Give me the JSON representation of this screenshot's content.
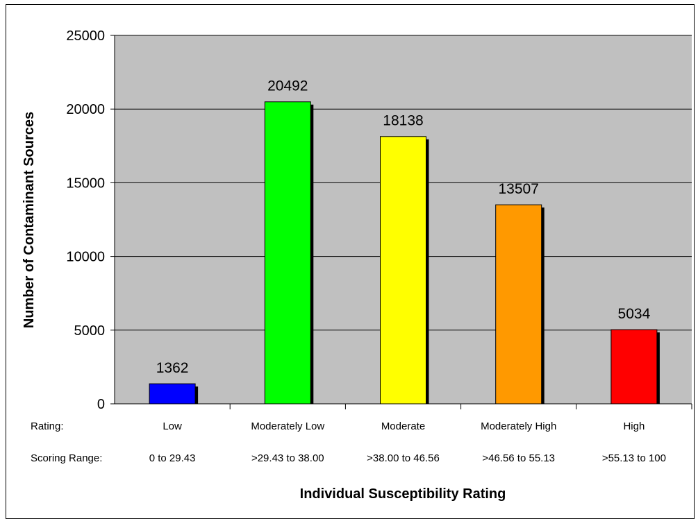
{
  "chart_data": {
    "type": "bar",
    "categories": [
      "Low",
      "Moderately Low",
      "Moderate",
      "Moderately High",
      "High"
    ],
    "scoring_ranges": [
      "0 to 29.43",
      ">29.43 to 38.00",
      ">38.00 to 46.56",
      ">46.56 to 55.13",
      ">55.13 to 100"
    ],
    "values": [
      1362,
      20492,
      18138,
      13507,
      5034
    ],
    "colors": [
      "#0000ff",
      "#00ff00",
      "#ffff00",
      "#ff9900",
      "#ff0000"
    ],
    "xlabel": "Individual Susceptibility Rating",
    "ylabel": "Number of Contaminant Sources",
    "ylim": [
      0,
      25000
    ],
    "yticks": [
      0,
      5000,
      10000,
      15000,
      20000,
      25000
    ],
    "grid": true,
    "plot_background": "#c0c0c0",
    "row_labels": {
      "rating": "Rating:",
      "scoring_range": "Scoring Range:"
    }
  }
}
